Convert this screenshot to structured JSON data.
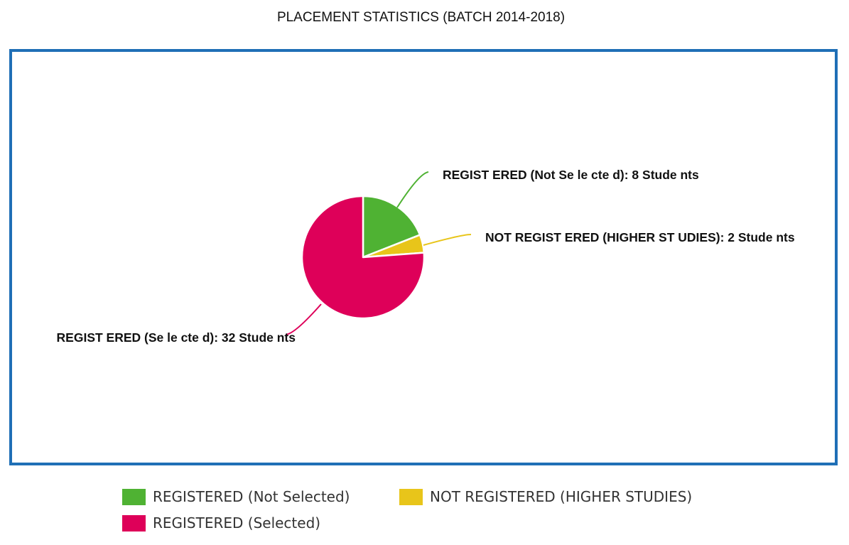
{
  "chart_data": {
    "type": "pie",
    "title": "PLACEMENT STATISTICS (BATCH 2014-2018)",
    "slices": [
      {
        "name": "REGISTERED (Not Selected)",
        "value": 8,
        "color": "#4fb233",
        "label": "REGIST ERED (Not Se le cte d): 8 Stude nts"
      },
      {
        "name": "NOT REGISTERED (HIGHER STUDIES)",
        "value": 2,
        "color": "#e8c51a",
        "label": "NOT  REGIST ERED (HIGHER ST UDIES): 2 Stude nts"
      },
      {
        "name": "REGISTERED (Selected)",
        "value": 32,
        "color": "#de0059",
        "label": "REGIST ERED (Se le cte d): 32 Stude nts"
      }
    ],
    "legend_position": "bottom",
    "border_color": "#1f6fb6"
  },
  "legend": [
    {
      "label": "REGISTERED (Not Selected)",
      "color": "#4fb233"
    },
    {
      "label": "NOT REGISTERED (HIGHER STUDIES)",
      "color": "#e8c51a"
    },
    {
      "label": "REGISTERED (Selected)",
      "color": "#de0059"
    }
  ]
}
